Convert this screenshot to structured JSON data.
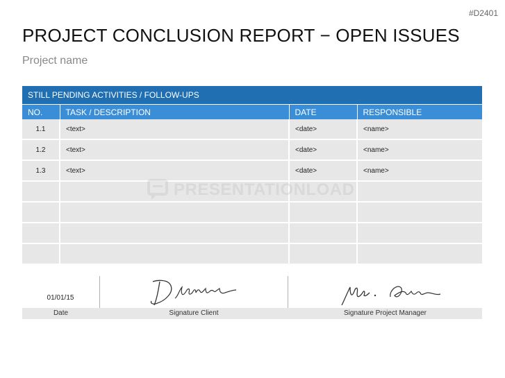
{
  "code": "#D2401",
  "title": "PROJECT CONCLUSION REPORT − OPEN ISSUES",
  "subtitle": "Project name",
  "table": {
    "banner": "STILL PENDING ACTIVITIES / FOLLOW-UPS",
    "headers": [
      "NO.",
      "TASK / DESCRIPTION",
      "DATE",
      "RESPONSIBLE"
    ],
    "rows": [
      {
        "no": "1.1",
        "task": "<text>",
        "date": "<date>",
        "responsible": "<name>"
      },
      {
        "no": "1.2",
        "task": "<text>",
        "date": "<date>",
        "responsible": "<name>"
      },
      {
        "no": "1.3",
        "task": "<text>",
        "date": "<date>",
        "responsible": "<name>"
      },
      {
        "no": "",
        "task": "",
        "date": "",
        "responsible": ""
      },
      {
        "no": "",
        "task": "",
        "date": "",
        "responsible": ""
      },
      {
        "no": "",
        "task": "",
        "date": "",
        "responsible": ""
      },
      {
        "no": "",
        "task": "",
        "date": "",
        "responsible": ""
      }
    ]
  },
  "watermark": {
    "text": "PRESENTATIONLOAD",
    "icon": "speech-bubble-icon"
  },
  "signature": {
    "date_value": "01/01/15",
    "labels": {
      "date": "Date",
      "client": "Signature Client",
      "manager": "Signature Project Manager"
    }
  }
}
